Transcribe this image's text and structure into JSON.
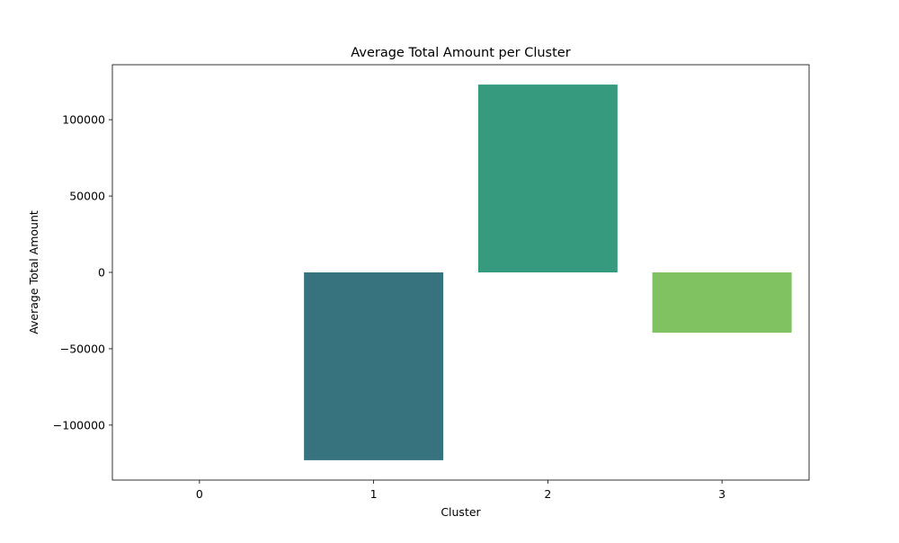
{
  "chart_data": {
    "type": "bar",
    "title": "Average Total Amount per Cluster",
    "xlabel": "Cluster",
    "ylabel": "Average Total Amount",
    "categories": [
      "0",
      "1",
      "2",
      "3"
    ],
    "values": [
      0,
      -123000,
      123000,
      -39500
    ],
    "colors": [
      "#440154",
      "#37737f",
      "#359a7e",
      "#80c261"
    ],
    "ylim": [
      -136000,
      136000
    ],
    "yticks": [
      -100000,
      -50000,
      0,
      50000,
      100000
    ],
    "ytick_labels": [
      "−100000",
      "−50000",
      "0",
      "50000",
      "100000"
    ],
    "grid": false,
    "legend": "none"
  }
}
